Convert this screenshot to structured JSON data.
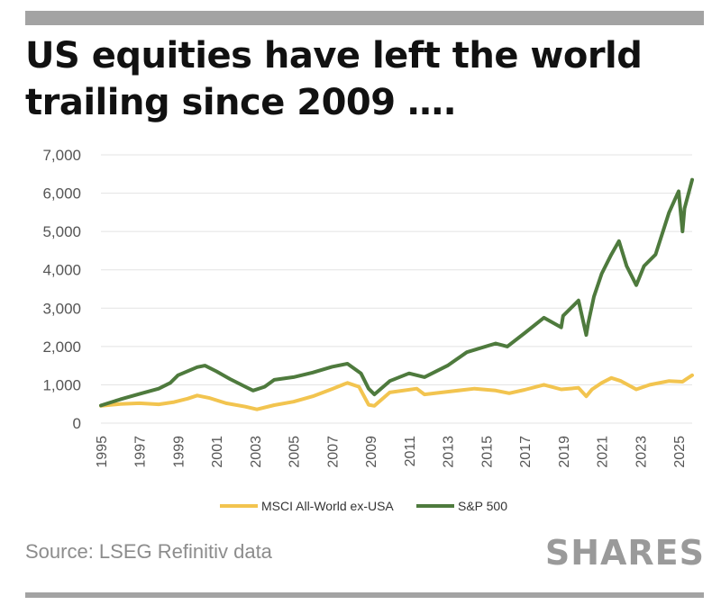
{
  "header": {
    "title_line1": "US equities have left the world",
    "title_line2": "trailing since 2009 …."
  },
  "footer": {
    "source": "Source: LSEG Refinitiv data",
    "brand": "SHARES"
  },
  "colors": {
    "sp500": "#4e7a3d",
    "msci": "#f2c44f",
    "grid": "#e3e3e3",
    "axis_text": "#555555",
    "rule": "#a3a3a3"
  },
  "chart_data": {
    "type": "line",
    "ylim": [
      0,
      7000
    ],
    "xlim": [
      1995,
      2025.7
    ],
    "yticks": [
      "0",
      "1,000",
      "2,000",
      "3,000",
      "4,000",
      "5,000",
      "6,000",
      "7,000"
    ],
    "xticks": [
      "1995",
      "1997",
      "1999",
      "2001",
      "2003",
      "2005",
      "2007",
      "2009",
      "2011",
      "2013",
      "2015",
      "2017",
      "2019",
      "2021",
      "2023",
      "2025"
    ],
    "grid": "horizontal",
    "legend_position": "bottom",
    "series": [
      {
        "name": "MSCI All-World ex-USA",
        "x": [
          1995,
          1996,
          1997,
          1998,
          1998.8,
          1999.5,
          2000.0,
          2000.6,
          2001.5,
          2002.5,
          2003.1,
          2004,
          2005,
          2006,
          2007,
          2007.8,
          2008.4,
          2008.9,
          2009.2,
          2010,
          2011.4,
          2011.8,
          2013,
          2014.4,
          2015.5,
          2016.2,
          2017,
          2018,
          2018.9,
          2019.8,
          2020.2,
          2020.5,
          2021,
          2021.5,
          2022,
          2022.8,
          2023.5,
          2024.5,
          2025.2,
          2025.4,
          2025.7
        ],
        "y": [
          450,
          500,
          520,
          490,
          550,
          640,
          720,
          660,
          520,
          430,
          360,
          470,
          560,
          700,
          890,
          1050,
          950,
          480,
          450,
          800,
          900,
          750,
          820,
          900,
          850,
          780,
          870,
          1000,
          880,
          920,
          700,
          880,
          1050,
          1180,
          1100,
          880,
          1000,
          1100,
          1080,
          1150,
          1250
        ]
      },
      {
        "name": "S&P 500",
        "x": [
          1995,
          1996,
          1997,
          1998,
          1998.6,
          1999,
          2000.0,
          2000.4,
          2001.0,
          2001.7,
          2002.5,
          2002.9,
          2003.5,
          2004,
          2005,
          2006,
          2007,
          2007.8,
          2008.5,
          2008.9,
          2009.2,
          2010,
          2011,
          2011.8,
          2013,
          2014,
          2015.5,
          2016.1,
          2017,
          2018,
          2018.9,
          2019,
          2019.8,
          2020.2,
          2020.3,
          2020.6,
          2021,
          2021.5,
          2021.9,
          2022.3,
          2022.8,
          2023.2,
          2023.8,
          2024.5,
          2025.0,
          2025.2,
          2025.3,
          2025.7
        ],
        "y": [
          460,
          620,
          760,
          900,
          1050,
          1250,
          1460,
          1500,
          1350,
          1150,
          950,
          850,
          950,
          1130,
          1200,
          1320,
          1470,
          1550,
          1300,
          900,
          750,
          1100,
          1300,
          1200,
          1500,
          1850,
          2080,
          2000,
          2350,
          2750,
          2500,
          2800,
          3200,
          2300,
          2600,
          3300,
          3900,
          4400,
          4750,
          4100,
          3600,
          4100,
          4400,
          5500,
          6050,
          5000,
          5600,
          6350
        ]
      }
    ]
  }
}
